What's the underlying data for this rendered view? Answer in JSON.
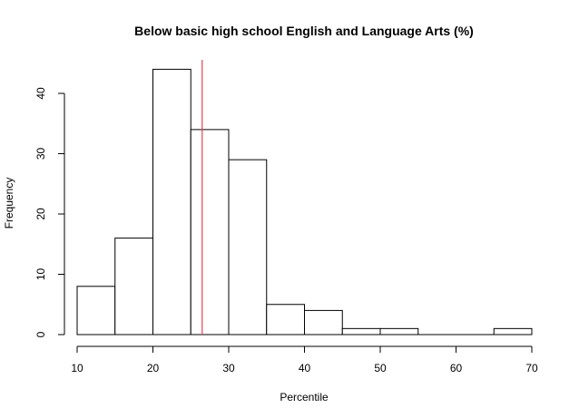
{
  "chart_data": {
    "type": "histogram",
    "title": "Below basic high school English and Language Arts (%)",
    "xlabel": "Percentile",
    "ylabel": "Frequency",
    "bins": [
      {
        "start": 10,
        "end": 15,
        "count": 8
      },
      {
        "start": 15,
        "end": 20,
        "count": 16
      },
      {
        "start": 20,
        "end": 25,
        "count": 44
      },
      {
        "start": 25,
        "end": 30,
        "count": 34
      },
      {
        "start": 30,
        "end": 35,
        "count": 29
      },
      {
        "start": 35,
        "end": 40,
        "count": 5
      },
      {
        "start": 40,
        "end": 45,
        "count": 4
      },
      {
        "start": 45,
        "end": 50,
        "count": 1
      },
      {
        "start": 50,
        "end": 55,
        "count": 1
      },
      {
        "start": 55,
        "end": 60,
        "count": 0
      },
      {
        "start": 60,
        "end": 65,
        "count": 0
      },
      {
        "start": 65,
        "end": 70,
        "count": 1
      }
    ],
    "xlim": [
      10,
      70
    ],
    "ylim": [
      0,
      44
    ],
    "x_ticks": [
      10,
      20,
      30,
      40,
      50,
      60,
      70
    ],
    "y_ticks": [
      0,
      10,
      20,
      30,
      40
    ],
    "reference_line": {
      "x": 26.5,
      "color": "#e8424f"
    },
    "bar_fill": "#ffffff",
    "bar_stroke": "#000000",
    "grid": false
  }
}
